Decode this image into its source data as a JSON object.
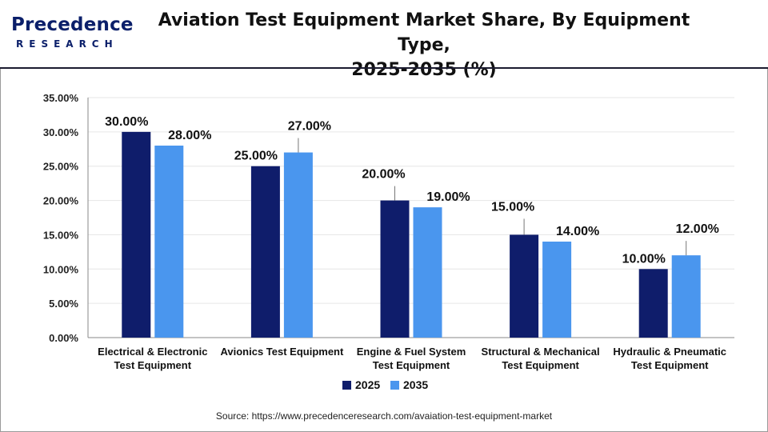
{
  "header": {
    "logo_name": "Precedence",
    "logo_sub": "RESEARCH",
    "title_line1": "Aviation Test Equipment Market Share, By Equipment Type,",
    "title_line2": "2025-2035 (%)"
  },
  "colors": {
    "series_2025": "#0f1d6b",
    "series_2035": "#4a96ee",
    "grid": "#e6e6e6",
    "axis": "#888888",
    "header_rule": "#1b1b2f"
  },
  "source": "Source: https://www.precedenceresearch.com/avaiation-test-equipment-market",
  "chart_data": {
    "type": "bar",
    "title": "Aviation Test Equipment Market Share, By Equipment Type, 2025-2035 (%)",
    "categories": [
      [
        "Electrical & Electronic",
        "Test Equipment"
      ],
      [
        "Avionics Test Equipment"
      ],
      [
        "Engine & Fuel System",
        "Test Equipment"
      ],
      [
        "Structural & Mechanical",
        "Test Equipment"
      ],
      [
        "Hydraulic & Pneumatic",
        "Test Equipment"
      ]
    ],
    "series": [
      {
        "name": "2025",
        "values": [
          30,
          25,
          20,
          15,
          10
        ],
        "labels": [
          "30.00%",
          "25.00%",
          "20.00%",
          "15.00%",
          "10.00%"
        ]
      },
      {
        "name": "2035",
        "values": [
          28,
          27,
          19,
          14,
          12
        ],
        "labels": [
          "28.00%",
          "27.00%",
          "19.00%",
          "14.00%",
          "12.00%"
        ]
      }
    ],
    "ylim": [
      0,
      35
    ],
    "yticks": [
      0,
      5,
      10,
      15,
      20,
      25,
      30,
      35
    ],
    "ytick_labels": [
      "0.00%",
      "5.00%",
      "10.00%",
      "15.00%",
      "20.00%",
      "25.00%",
      "30.00%",
      "35.00%"
    ],
    "xlabel": "",
    "ylabel": "",
    "grid": true,
    "legend": "bottom-center"
  }
}
